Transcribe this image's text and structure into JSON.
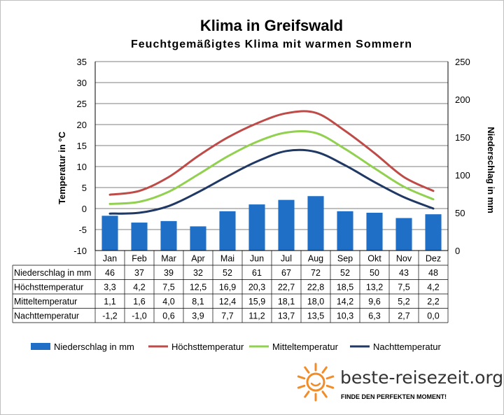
{
  "chart_data": {
    "type": "bar",
    "title": "Klima in Greifswald",
    "subtitle": "Feuchtgemäßigtes Klima mit warmen Sommern",
    "ylabel": "Temperatur in °C",
    "y2label": "Niederschlag in mm",
    "ylim": [
      -10,
      35
    ],
    "yticks": [
      -10,
      -5,
      0,
      5,
      10,
      15,
      20,
      25,
      30,
      35
    ],
    "y2lim": [
      0,
      250
    ],
    "y2ticks": [
      0,
      50,
      100,
      150,
      200,
      250
    ],
    "grid": true,
    "legend_position": "bottom",
    "categories": [
      "Jan",
      "Feb",
      "Mar",
      "Apr",
      "Mai",
      "Jun",
      "Jul",
      "Aug",
      "Sep",
      "Okt",
      "Nov",
      "Dez"
    ],
    "series": [
      {
        "name": "Niederschlag in mm",
        "type": "bar",
        "axis": "right",
        "color": "#1f6fc6",
        "values": [
          46,
          37,
          39,
          32,
          52,
          61,
          67,
          72,
          52,
          50,
          43,
          48
        ],
        "labels": [
          "46",
          "37",
          "39",
          "32",
          "52",
          "61",
          "67",
          "72",
          "52",
          "50",
          "43",
          "48"
        ]
      },
      {
        "name": "Höchsttemperatur",
        "type": "line",
        "axis": "left",
        "color": "#be4b48",
        "values": [
          3.3,
          4.2,
          7.5,
          12.5,
          16.9,
          20.3,
          22.7,
          22.8,
          18.5,
          13.2,
          7.5,
          4.2
        ],
        "labels": [
          "3,3",
          "4,2",
          "7,5",
          "12,5",
          "16,9",
          "20,3",
          "22,7",
          "22,8",
          "18,5",
          "13,2",
          "7,5",
          "4,2"
        ]
      },
      {
        "name": "Mitteltemperatur",
        "type": "line",
        "axis": "left",
        "color": "#92d050",
        "values": [
          1.1,
          1.6,
          4.0,
          8.1,
          12.4,
          15.9,
          18.1,
          18.0,
          14.2,
          9.6,
          5.2,
          2.2
        ],
        "labels": [
          "1,1",
          "1,6",
          "4,0",
          "8,1",
          "12,4",
          "15,9",
          "18,1",
          "18,0",
          "14,2",
          "9,6",
          "5,2",
          "2,2"
        ]
      },
      {
        "name": "Nachttemperatur",
        "type": "line",
        "axis": "left",
        "color": "#1f3864",
        "values": [
          -1.2,
          -1.0,
          0.6,
          3.9,
          7.7,
          11.2,
          13.7,
          13.5,
          10.3,
          6.3,
          2.7,
          0.0
        ],
        "labels": [
          "-1,2",
          "-1,0",
          "0,6",
          "3,9",
          "7,7",
          "11,2",
          "13,7",
          "13,5",
          "10,3",
          "6,3",
          "2,7",
          "0,0"
        ]
      }
    ]
  },
  "branding": {
    "site": "beste-reisezeit.org",
    "tagline": "FINDE DEN PERFEKTEN MOMENT!",
    "logo_icon": "sun-icon",
    "logo_color": "#f28c28"
  }
}
